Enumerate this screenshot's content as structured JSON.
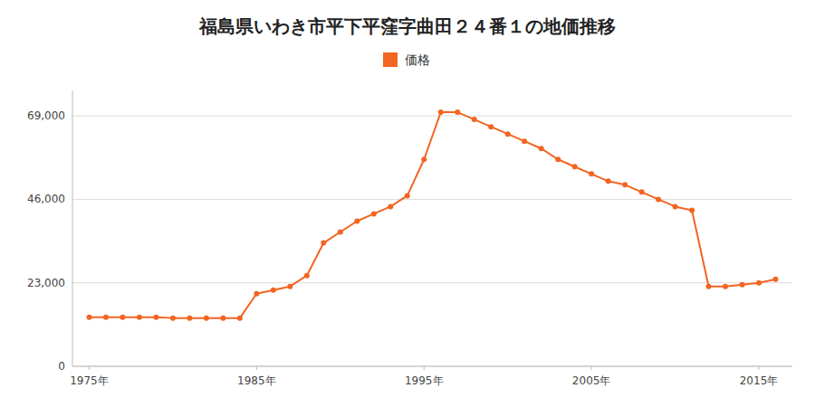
{
  "chart_data": {
    "type": "line",
    "title": "福島県いわき市平下平窪字曲田２４番１の地価推移",
    "x": [
      1975,
      1976,
      1977,
      1978,
      1979,
      1980,
      1981,
      1982,
      1983,
      1984,
      1985,
      1986,
      1987,
      1988,
      1989,
      1990,
      1991,
      1992,
      1993,
      1994,
      1995,
      1996,
      1997,
      1998,
      1999,
      2000,
      2001,
      2002,
      2003,
      2004,
      2005,
      2006,
      2007,
      2008,
      2009,
      2010,
      2011,
      2012,
      2013,
      2014,
      2015,
      2016
    ],
    "series": [
      {
        "name": "価格",
        "color": "#F26522",
        "marker": "circle",
        "values": [
          13500,
          13500,
          13500,
          13500,
          13500,
          13300,
          13300,
          13300,
          13300,
          13300,
          20000,
          21000,
          22000,
          25000,
          34000,
          37000,
          40000,
          42000,
          44000,
          47000,
          57000,
          70000,
          70000,
          68000,
          66000,
          64000,
          62000,
          60000,
          57000,
          55000,
          53000,
          51000,
          50000,
          48000,
          46000,
          44000,
          43000,
          22000,
          22000,
          22500,
          23000,
          24000
        ]
      }
    ],
    "xlim": [
      1974,
      2017
    ],
    "xticks": [
      {
        "value": 1975,
        "label": "1975年"
      },
      {
        "value": 1985,
        "label": "1985年"
      },
      {
        "value": 1995,
        "label": "1995年"
      },
      {
        "value": 2005,
        "label": "2005年"
      },
      {
        "value": 2015,
        "label": "2015年"
      }
    ],
    "ylim": [
      0,
      76000
    ],
    "yticks": [
      0,
      {
        "value": 23000,
        "label": "23,000"
      },
      {
        "value": 46000,
        "label": "46,000"
      },
      {
        "value": 69000,
        "label": "69,000"
      }
    ],
    "grid": true,
    "legend": "top"
  }
}
